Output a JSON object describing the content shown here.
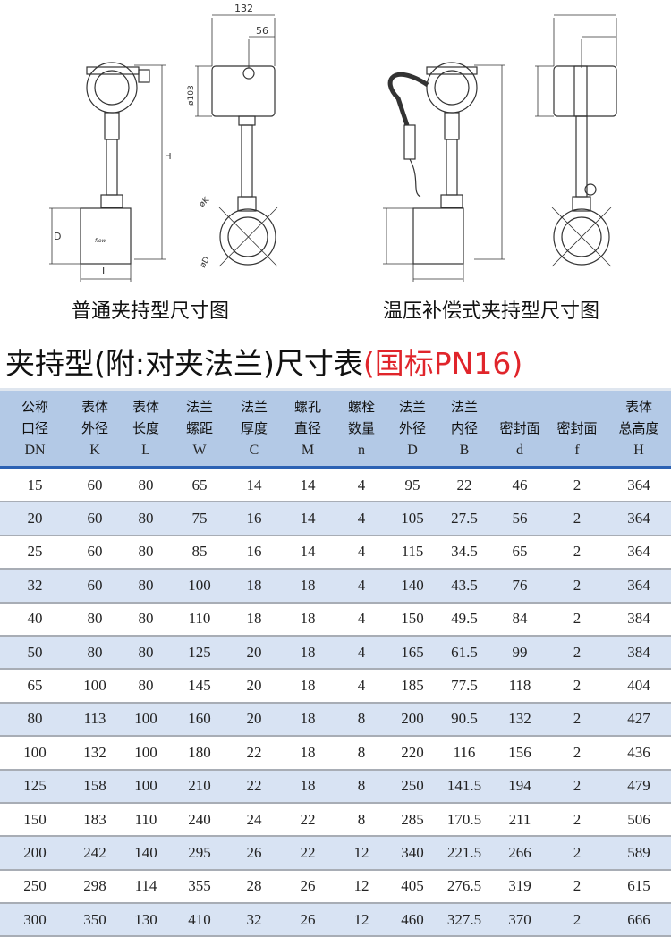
{
  "drawings": {
    "left_caption": "普通夹持型尺寸图",
    "right_caption": "温压补偿式夹持型尺寸图",
    "dim_width": "132",
    "dim_offset": "56",
    "dim_head_dia": "ø103",
    "dim_height": "H",
    "dim_body_dia": "D",
    "dim_length": "L",
    "dim_k": "øK",
    "dim_d": "øD",
    "flow_label": "flow"
  },
  "title": {
    "main": "夹持型(附:对夹法兰)尺寸表",
    "standard": "(国标PN16)",
    "standard_color": "#e0252b"
  },
  "table": {
    "header_color": "#b3c9e6",
    "stripe_color": "#d8e3f3",
    "columns": [
      {
        "cn1": "公称",
        "cn2": "口径",
        "sym": "DN"
      },
      {
        "cn1": "表体",
        "cn2": "外径",
        "sym": "K"
      },
      {
        "cn1": "表体",
        "cn2": "长度",
        "sym": "L"
      },
      {
        "cn1": "法兰",
        "cn2": "螺距",
        "sym": "W"
      },
      {
        "cn1": "法兰",
        "cn2": "厚度",
        "sym": "C"
      },
      {
        "cn1": "螺孔",
        "cn2": "直径",
        "sym": "M"
      },
      {
        "cn1": "螺栓",
        "cn2": "数量",
        "sym": "n"
      },
      {
        "cn1": "法兰",
        "cn2": "外径",
        "sym": "D"
      },
      {
        "cn1": "法兰",
        "cn2": "内径",
        "sym": "B"
      },
      {
        "cn1": "",
        "cn2": "密封面",
        "sym": "d"
      },
      {
        "cn1": "",
        "cn2": "密封面",
        "sym": "f"
      },
      {
        "cn1": "表体",
        "cn2": "总高度",
        "sym": "H"
      }
    ],
    "rows": [
      [
        "15",
        "60",
        "80",
        "65",
        "14",
        "14",
        "4",
        "95",
        "22",
        "46",
        "2",
        "364"
      ],
      [
        "20",
        "60",
        "80",
        "75",
        "16",
        "14",
        "4",
        "105",
        "27.5",
        "56",
        "2",
        "364"
      ],
      [
        "25",
        "60",
        "80",
        "85",
        "16",
        "14",
        "4",
        "115",
        "34.5",
        "65",
        "2",
        "364"
      ],
      [
        "32",
        "60",
        "80",
        "100",
        "18",
        "18",
        "4",
        "140",
        "43.5",
        "76",
        "2",
        "364"
      ],
      [
        "40",
        "80",
        "80",
        "110",
        "18",
        "18",
        "4",
        "150",
        "49.5",
        "84",
        "2",
        "384"
      ],
      [
        "50",
        "80",
        "80",
        "125",
        "20",
        "18",
        "4",
        "165",
        "61.5",
        "99",
        "2",
        "384"
      ],
      [
        "65",
        "100",
        "80",
        "145",
        "20",
        "18",
        "4",
        "185",
        "77.5",
        "118",
        "2",
        "404"
      ],
      [
        "80",
        "113",
        "100",
        "160",
        "20",
        "18",
        "8",
        "200",
        "90.5",
        "132",
        "2",
        "427"
      ],
      [
        "100",
        "132",
        "100",
        "180",
        "22",
        "18",
        "8",
        "220",
        "116",
        "156",
        "2",
        "436"
      ],
      [
        "125",
        "158",
        "100",
        "210",
        "22",
        "18",
        "8",
        "250",
        "141.5",
        "194",
        "2",
        "479"
      ],
      [
        "150",
        "183",
        "110",
        "240",
        "24",
        "22",
        "8",
        "285",
        "170.5",
        "211",
        "2",
        "506"
      ],
      [
        "200",
        "242",
        "140",
        "295",
        "26",
        "22",
        "12",
        "340",
        "221.5",
        "266",
        "2",
        "589"
      ],
      [
        "250",
        "298",
        "114",
        "355",
        "28",
        "26",
        "12",
        "405",
        "276.5",
        "319",
        "2",
        "615"
      ],
      [
        "300",
        "350",
        "130",
        "410",
        "32",
        "26",
        "12",
        "460",
        "327.5",
        "370",
        "2",
        "666"
      ]
    ]
  }
}
